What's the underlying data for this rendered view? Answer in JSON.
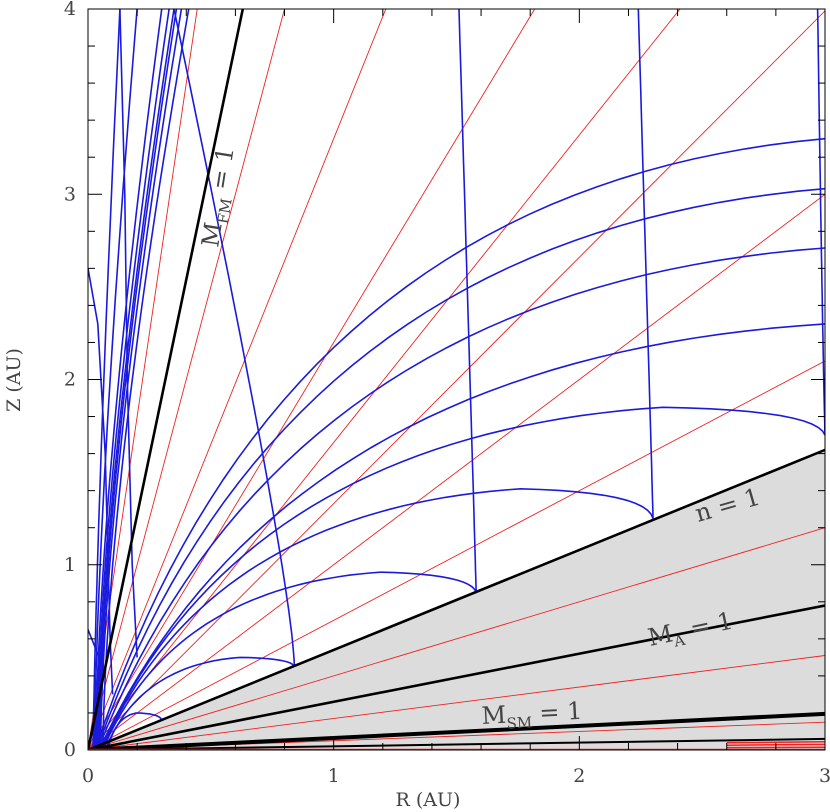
{
  "chart_data": {
    "type": "line",
    "title": "",
    "xlabel": "R (AU)",
    "ylabel": "Z (AU)",
    "xlim": [
      0,
      3
    ],
    "ylim": [
      0,
      4
    ],
    "xticks": [
      0,
      1,
      2,
      3
    ],
    "yticks": [
      0,
      1,
      2,
      3,
      4
    ],
    "xtick_labels": [
      "0",
      "1",
      "2",
      "3"
    ],
    "ytick_labels": [
      "0",
      "1",
      "2",
      "3",
      "4"
    ],
    "grid": false,
    "colors": {
      "field_lines": "#1a1add",
      "red_lines": "#ee2222",
      "critical_surfaces": "#000000",
      "shaded_region": "#dcdcdc"
    },
    "shaded_region": {
      "upper_boundary": "n = 1",
      "lower_boundary": "disk"
    },
    "critical_surfaces": [
      {
        "id": "mfm",
        "slope": 6.35,
        "label_main": "M",
        "label_sub": "FM",
        "label_rest": " = 1"
      },
      {
        "id": "n1",
        "slope": 0.54,
        "label_main": "n = 1",
        "label_sub": "",
        "label_rest": ""
      },
      {
        "id": "ma",
        "slope": 0.26,
        "label_main": "M",
        "label_sub": "A",
        "label_rest": " = 1"
      },
      {
        "id": "msm",
        "slope": 0.065,
        "label_main": "M",
        "label_sub": "SM",
        "label_rest": " = 1"
      },
      {
        "id": "disk",
        "slope": 0.02,
        "label_main": "",
        "label_sub": "",
        "label_rest": ""
      }
    ],
    "blue_fanning_lines": [
      {
        "x0": 0.03,
        "x1": 3.0,
        "y1": 3.3
      },
      {
        "x0": 0.035,
        "x1": 3.0,
        "y1": 3.03
      },
      {
        "x0": 0.04,
        "x1": 3.0,
        "y1": 2.71
      },
      {
        "x0": 0.045,
        "x1": 3.0,
        "y1": 2.3
      },
      {
        "x0": 0.05,
        "x1": 2.34,
        "y1": 1.85,
        "x2": 3.0,
        "y2": 1.7
      },
      {
        "x0": 0.055,
        "x1": 1.76,
        "y1": 1.41,
        "x2": 2.3,
        "y2": 1.25
      },
      {
        "x0": 0.06,
        "x1": 1.19,
        "y1": 0.96,
        "x2": 1.58,
        "y2": 0.85
      },
      {
        "x0": 0.07,
        "x1": 0.62,
        "y1": 0.5,
        "x2": 0.84,
        "y2": 0.45
      },
      {
        "x0": 0.08,
        "x1": 0.2,
        "y1": 0.2,
        "x2": 0.3,
        "y2": 0.16
      }
    ],
    "blue_vertical_lines": [
      {
        "xtop": 1.51,
        "ybot": 0.85,
        "xbot": 1.58,
        "ytop": 4.0
      },
      {
        "xtop": 2.24,
        "ybot": 1.25,
        "xbot": 2.3,
        "ytop": 4.0
      },
      {
        "xtop": 2.97,
        "ybot": 1.7,
        "xbot": 3.0,
        "ytop": 4.0
      },
      {
        "xtop": 0.35,
        "ybot": 0.45,
        "xbot": 0.84,
        "ytop": 4.0
      }
    ],
    "blue_steep_lines": [
      {
        "x0": 0.02,
        "xtop": 0.13
      },
      {
        "x0": 0.025,
        "xtop": 0.2
      },
      {
        "x0": 0.03,
        "xtop": 0.3
      },
      {
        "x0": 0.035,
        "xtop": 0.33
      },
      {
        "x0": 0.04,
        "xtop": 0.35
      },
      {
        "x0": 0.045,
        "xtop": 0.36
      },
      {
        "x0": 0.05,
        "xtop": 0.38
      },
      {
        "x0": 0.06,
        "xtop": 0.41
      }
    ],
    "blue_small_curves": [
      {
        "pts": [
          [
            0.0,
            2.6
          ],
          [
            0.04,
            2.3
          ],
          [
            0.07,
            1.6
          ],
          [
            0.09,
            0.6
          ],
          [
            0.1,
            0.3
          ]
        ]
      },
      {
        "pts": [
          [
            0.0,
            0.65
          ],
          [
            0.03,
            0.55
          ],
          [
            0.06,
            0.45
          ]
        ]
      },
      {
        "pts": [
          [
            0.13,
            4.0
          ],
          [
            0.15,
            3.0
          ],
          [
            0.16,
            2.0
          ],
          [
            0.18,
            1.0
          ],
          [
            0.2,
            0.5
          ]
        ]
      }
    ],
    "red_radial_slopes": [
      0.05,
      0.17,
      0.4,
      0.7,
      1.0,
      1.33,
      1.66,
      2.2,
      3.3,
      5.0,
      9.0
    ]
  }
}
